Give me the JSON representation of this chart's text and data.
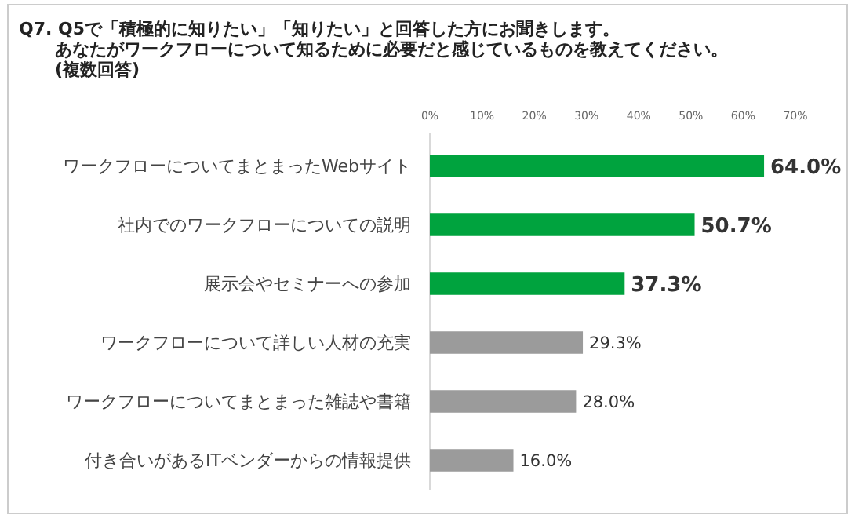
{
  "chart_data": {
    "type": "bar",
    "orientation": "horizontal",
    "title": "Q7. Q5で「積極的に知りたい」「知りたい」と回答した方にお聞きします。あなたがワークフローについて知るために必要だと感じているものを教えてください。",
    "subtitle": "(複数回答)",
    "categories": [
      "ワークフローについてまとまったWebサイト",
      "社内でのワークフローについての説明",
      "展示会やセミナーへの参加",
      "ワークフローについて詳しい人材の充実",
      "ワークフローについてまとまった雑誌や書籍",
      "付き合いがあるITベンダーからの情報提供"
    ],
    "values": [
      64.0,
      50.7,
      37.3,
      29.3,
      28.0,
      16.0
    ],
    "colors": [
      "#00a33e",
      "#00a33e",
      "#00a33e",
      "#9b9b9b",
      "#9b9b9b",
      "#9b9b9b"
    ],
    "value_labels": [
      "64.0%",
      "50.7%",
      "37.3%",
      "29.3%",
      "28.0%",
      "16.0%"
    ],
    "xlim": [
      0,
      70
    ],
    "xticks": [
      {
        "value": 0,
        "label": "0%"
      },
      {
        "value": 10,
        "label": "10%"
      },
      {
        "value": 20,
        "label": "20%"
      },
      {
        "value": 30,
        "label": "30%"
      },
      {
        "value": 40,
        "label": "40%"
      },
      {
        "value": 50,
        "label": "50%"
      },
      {
        "value": 60,
        "label": "60%"
      },
      {
        "value": 70,
        "label": "70%"
      }
    ],
    "grid": false
  }
}
